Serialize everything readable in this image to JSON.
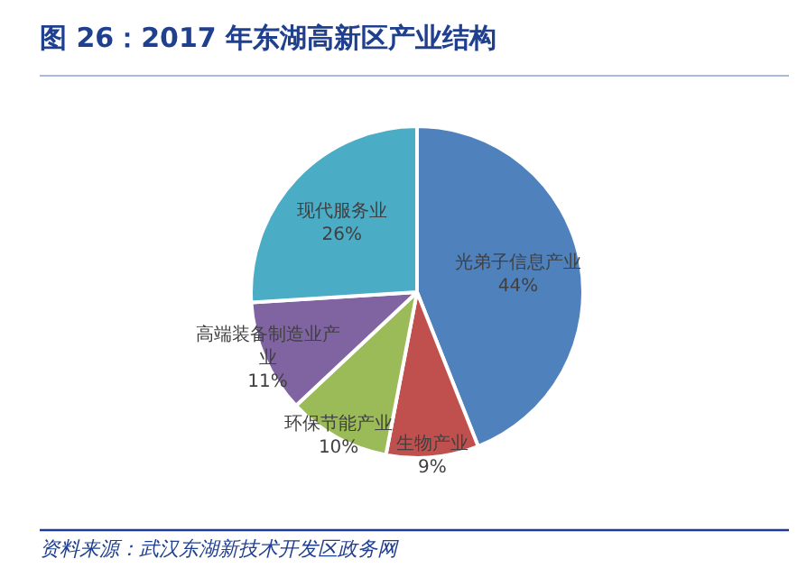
{
  "chart_data": {
    "type": "pie",
    "title": "图 26：2017 年东湖高新区产业结构",
    "categories": [
      "光弟子信息产业",
      "生物产业",
      "环保节能产业",
      "高端装备制造业产业",
      "现代服务业"
    ],
    "values": [
      44,
      9,
      10,
      11,
      26
    ],
    "value_labels": [
      "44%",
      "9%",
      "10%",
      "11%",
      "26%"
    ],
    "colors": [
      "#4f81bd",
      "#c0504d",
      "#9bbb59",
      "#8064a2",
      "#4bacc6"
    ],
    "annotations": [
      "资料来源：武汉东湖新技术开发区政务网"
    ]
  }
}
